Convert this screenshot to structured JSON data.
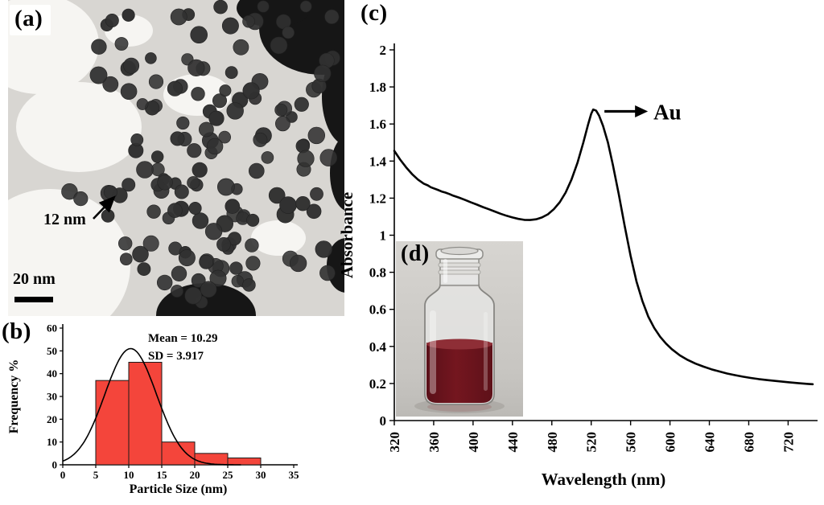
{
  "panels": {
    "a": {
      "label": "(a)",
      "particle_size_label": "12 nm",
      "scale_bar_label": "20 nm"
    },
    "b": {
      "label": "(b)"
    },
    "c": {
      "label": "(c)"
    },
    "d": {
      "label": "(d)"
    }
  },
  "chart_data": [
    {
      "id": "histogram",
      "type": "bar",
      "title": "",
      "xlabel": "Particle Size (nm)",
      "ylabel": "Frequency %",
      "xlim": [
        0,
        35
      ],
      "ylim": [
        0,
        60
      ],
      "xticks": [
        0,
        5,
        10,
        15,
        20,
        25,
        30,
        35
      ],
      "yticks": [
        0,
        10,
        20,
        30,
        40,
        50,
        60
      ],
      "bar_color": "#f4453b",
      "bin_width": 5,
      "bins": [
        {
          "start": 5,
          "frequency": 37
        },
        {
          "start": 10,
          "frequency": 45
        },
        {
          "start": 15,
          "frequency": 10
        },
        {
          "start": 20,
          "frequency": 5
        },
        {
          "start": 25,
          "frequency": 3
        }
      ],
      "fit": {
        "type": "gaussian",
        "mean": 10.29,
        "sd": 3.917,
        "peak": 51
      },
      "annotations": [
        "Mean = 10.29",
        "SD = 3.917"
      ],
      "grid": false,
      "legend": false
    },
    {
      "id": "spectrum",
      "type": "line",
      "title": "",
      "xlabel": "Wavelength (nm)",
      "ylabel": "Absorbance",
      "xlim": [
        320,
        745
      ],
      "ylim": [
        0,
        2
      ],
      "xticks": [
        320,
        360,
        400,
        440,
        480,
        520,
        560,
        600,
        640,
        680,
        720
      ],
      "yticks": [
        0,
        0.2,
        0.4,
        0.6,
        0.8,
        1,
        1.2,
        1.4,
        1.6,
        1.8,
        2
      ],
      "line_color": "#000000",
      "peak_annotation": {
        "x": 522,
        "y": 1.678,
        "label": "Au"
      },
      "points": [
        [
          320,
          1.455
        ],
        [
          326,
          1.408
        ],
        [
          332,
          1.366
        ],
        [
          338,
          1.33
        ],
        [
          344,
          1.3
        ],
        [
          350,
          1.278
        ],
        [
          354,
          1.269
        ],
        [
          357,
          1.259
        ],
        [
          360,
          1.253
        ],
        [
          364,
          1.245
        ],
        [
          368,
          1.236
        ],
        [
          372,
          1.23
        ],
        [
          376,
          1.222
        ],
        [
          380,
          1.213
        ],
        [
          386,
          1.202
        ],
        [
          392,
          1.19
        ],
        [
          398,
          1.177
        ],
        [
          404,
          1.165
        ],
        [
          410,
          1.152
        ],
        [
          416,
          1.14
        ],
        [
          422,
          1.128
        ],
        [
          428,
          1.116
        ],
        [
          434,
          1.105
        ],
        [
          440,
          1.096
        ],
        [
          446,
          1.088
        ],
        [
          452,
          1.083
        ],
        [
          458,
          1.082
        ],
        [
          464,
          1.086
        ],
        [
          470,
          1.096
        ],
        [
          476,
          1.113
        ],
        [
          482,
          1.14
        ],
        [
          488,
          1.178
        ],
        [
          494,
          1.23
        ],
        [
          500,
          1.3
        ],
        [
          506,
          1.39
        ],
        [
          512,
          1.5
        ],
        [
          517,
          1.6
        ],
        [
          520,
          1.655
        ],
        [
          522,
          1.678
        ],
        [
          525,
          1.672
        ],
        [
          528,
          1.645
        ],
        [
          532,
          1.59
        ],
        [
          537,
          1.5
        ],
        [
          542,
          1.38
        ],
        [
          548,
          1.22
        ],
        [
          554,
          1.05
        ],
        [
          560,
          0.89
        ],
        [
          566,
          0.75
        ],
        [
          572,
          0.645
        ],
        [
          578,
          0.56
        ],
        [
          584,
          0.5
        ],
        [
          590,
          0.452
        ],
        [
          596,
          0.415
        ],
        [
          602,
          0.385
        ],
        [
          610,
          0.352
        ],
        [
          618,
          0.327
        ],
        [
          626,
          0.307
        ],
        [
          634,
          0.291
        ],
        [
          642,
          0.277
        ],
        [
          650,
          0.265
        ],
        [
          658,
          0.254
        ],
        [
          666,
          0.245
        ],
        [
          674,
          0.237
        ],
        [
          682,
          0.23
        ],
        [
          690,
          0.224
        ],
        [
          700,
          0.218
        ],
        [
          710,
          0.212
        ],
        [
          720,
          0.207
        ],
        [
          730,
          0.202
        ],
        [
          740,
          0.198
        ],
        [
          745,
          0.196
        ]
      ],
      "grid": false,
      "legend": false
    }
  ]
}
